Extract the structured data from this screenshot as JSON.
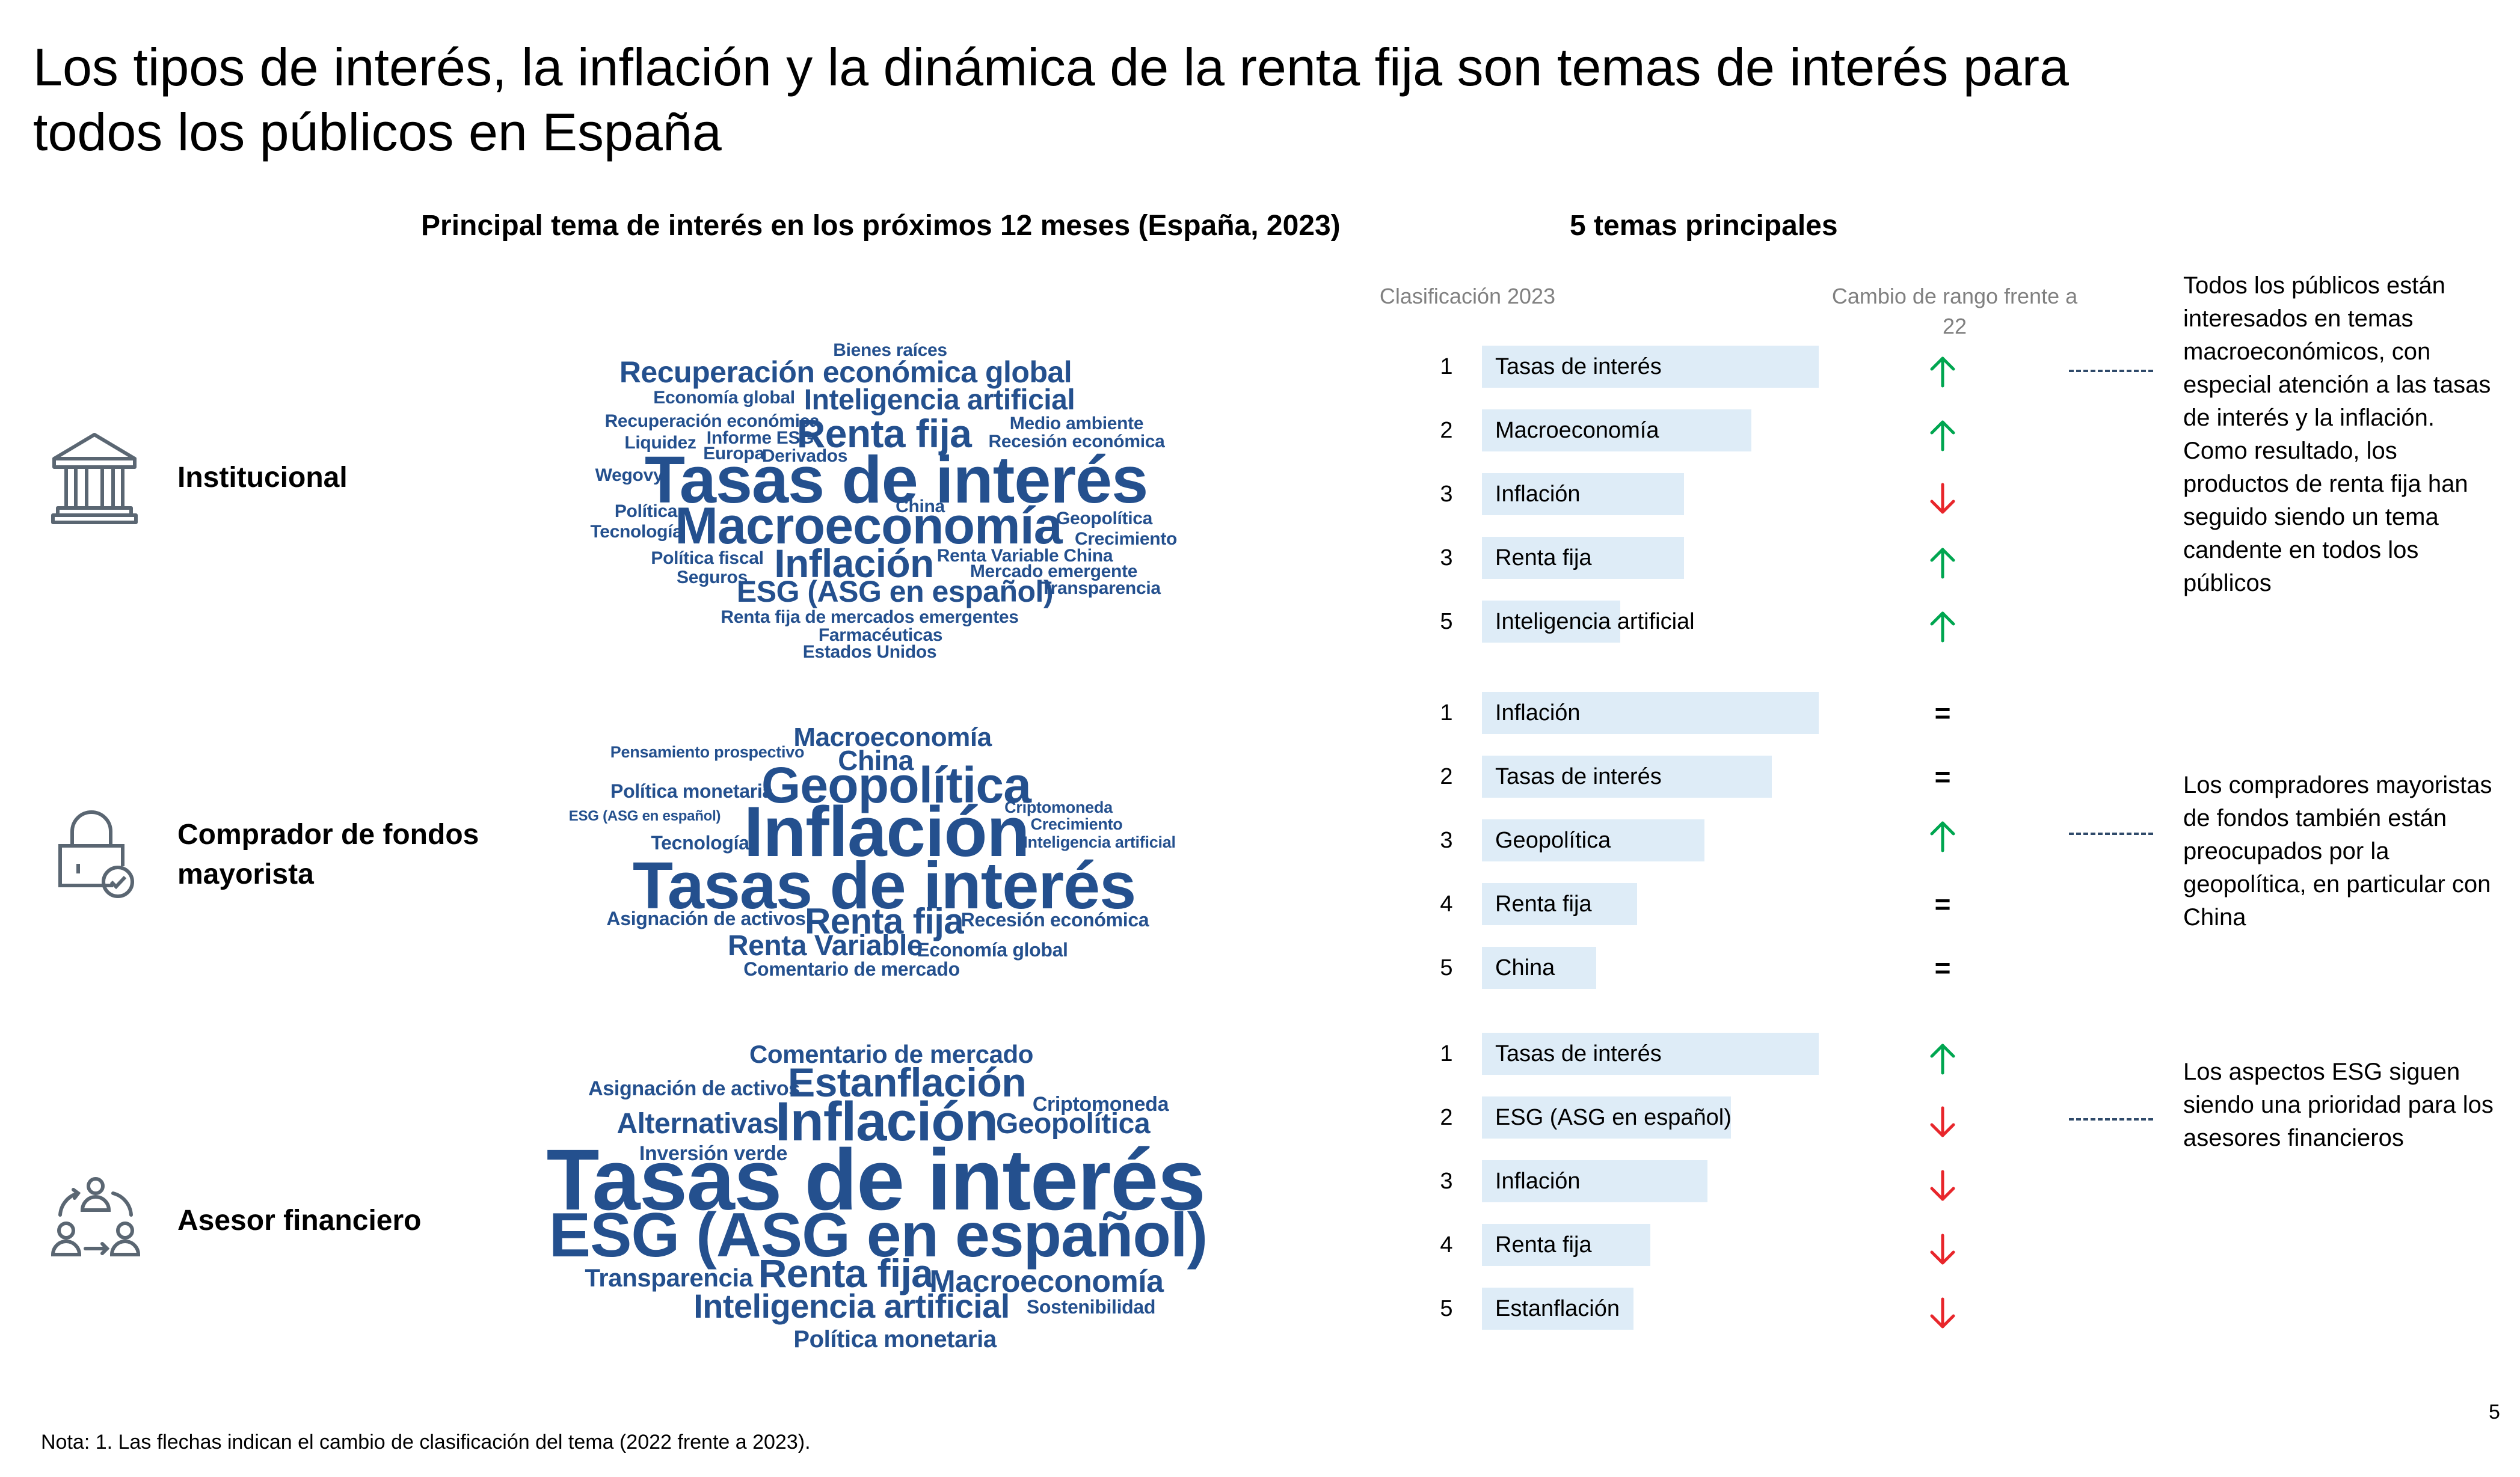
{
  "title": "Los tipos de interés, la inflación y la dinámica de la renta fija son temas de interés para todos los públicos en España",
  "cloud_title": "Principal tema de interés en los próximos 12 meses (España, 2023)",
  "top5_title": "5 temas principales",
  "col_rank": "Clasificación 2023",
  "col_change": "Cambio de rango frente a 22",
  "colors": {
    "text": "#000000",
    "word_cloud": "#24508e",
    "bar": "#deecf7",
    "up": "#00a650",
    "down": "#e8262b",
    "icon": "#5a6672"
  },
  "audiences": [
    {
      "label": "Institucional",
      "icon": "bank-icon",
      "words": [
        "Bienes raíces",
        "Recuperación económica global",
        "Economía global",
        "Inteligencia artificial",
        "Recuperación económica",
        "Medio ambiente",
        "Liquidez",
        "Informe ESG",
        "Renta fija",
        "Recesión económica",
        "Europa",
        "Derivados",
        "Wegovy",
        "Tasas de interés",
        "Política",
        "China",
        "Geopolítica",
        "Tecnología",
        "Macroeconomía",
        "Crecimiento",
        "Política fiscal",
        "Inflación",
        "Renta Variable China",
        "Seguros",
        "Mercado emergente",
        "ESG (ASG en español)",
        "Transparencia",
        "Renta fija de mercados emergentes",
        "Farmacéuticas",
        "Estados Unidos"
      ],
      "top5": [
        {
          "rank": "1",
          "topic": "Tasas de interés",
          "bar": 1.0,
          "change": "up"
        },
        {
          "rank": "2",
          "topic": "Macroeconomía",
          "bar": 0.8,
          "change": "up"
        },
        {
          "rank": "3",
          "topic": "Inflación",
          "bar": 0.6,
          "change": "down"
        },
        {
          "rank": "3",
          "topic": "Renta fija",
          "bar": 0.6,
          "change": "up"
        },
        {
          "rank": "5",
          "topic": "Inteligencia artificial",
          "bar": 0.41,
          "change": "up"
        }
      ],
      "note": "Todos los públicos están interesados en temas macroeconómicos, con especial atención a las tasas de interés y la inflación. Como resultado, los productos de renta fija han seguido siendo un tema candente en todos los públicos"
    },
    {
      "label": "Comprador de fondos mayorista",
      "icon": "lock-check-icon",
      "words": [
        "Macroeconomía",
        "Pensamiento prospectivo",
        "China",
        "Política monetaria",
        "Geopolítica",
        "Criptomoneda",
        "ESG (ASG en español)",
        "Crecimiento",
        "Tecnología",
        "Inflación",
        "Inteligencia artificial",
        "Tasas de interés",
        "Asignación de activos",
        "Renta fija",
        "Recesión económica",
        "Renta Variable",
        "Economía global",
        "Comentario de mercado"
      ],
      "top5": [
        {
          "rank": "1",
          "topic": "Inflación",
          "bar": 1.0,
          "change": "equal"
        },
        {
          "rank": "2",
          "topic": "Tasas de interés",
          "bar": 0.86,
          "change": "equal"
        },
        {
          "rank": "3",
          "topic": "Geopolítica",
          "bar": 0.66,
          "change": "up"
        },
        {
          "rank": "4",
          "topic": "Renta fija",
          "bar": 0.46,
          "change": "equal"
        },
        {
          "rank": "5",
          "topic": "China",
          "bar": 0.34,
          "change": "equal"
        }
      ],
      "equal_symbol": "=",
      "note": "Los compradores mayoristas de fondos también están preocupados por la geopolítica, en particular con China"
    },
    {
      "label": "Asesor financiero",
      "icon": "advisor-exchange-icon",
      "words": [
        "Comentario de mercado",
        "Asignación de activos",
        "Estanflación",
        "Criptomoneda",
        "Alternativas",
        "Inflación",
        "Geopolítica",
        "Inversión verde",
        "Tasas de interés",
        "ESG (ASG en español)",
        "Transparencia",
        "Renta fija",
        "Macroeconomía",
        "Inteligencia artificial",
        "Sostenibilidad",
        "Política monetaria"
      ],
      "top5": [
        {
          "rank": "1",
          "topic": "Tasas de interés",
          "bar": 1.0,
          "change": "up"
        },
        {
          "rank": "2",
          "topic": "ESG (ASG en español)",
          "bar": 0.74,
          "change": "down"
        },
        {
          "rank": "3",
          "topic": "Inflación",
          "bar": 0.67,
          "change": "down"
        },
        {
          "rank": "4",
          "topic": "Renta fija",
          "bar": 0.5,
          "change": "down"
        },
        {
          "rank": "5",
          "topic": "Estanflación",
          "bar": 0.45,
          "change": "down"
        }
      ],
      "note": "Los aspectos ESG siguen siendo una prioridad para los asesores financieros"
    }
  ],
  "footnote": "Nota: 1. Las flechas indican el cambio de clasificación del tema (2022 frente a 2023).",
  "page_number": "5"
}
